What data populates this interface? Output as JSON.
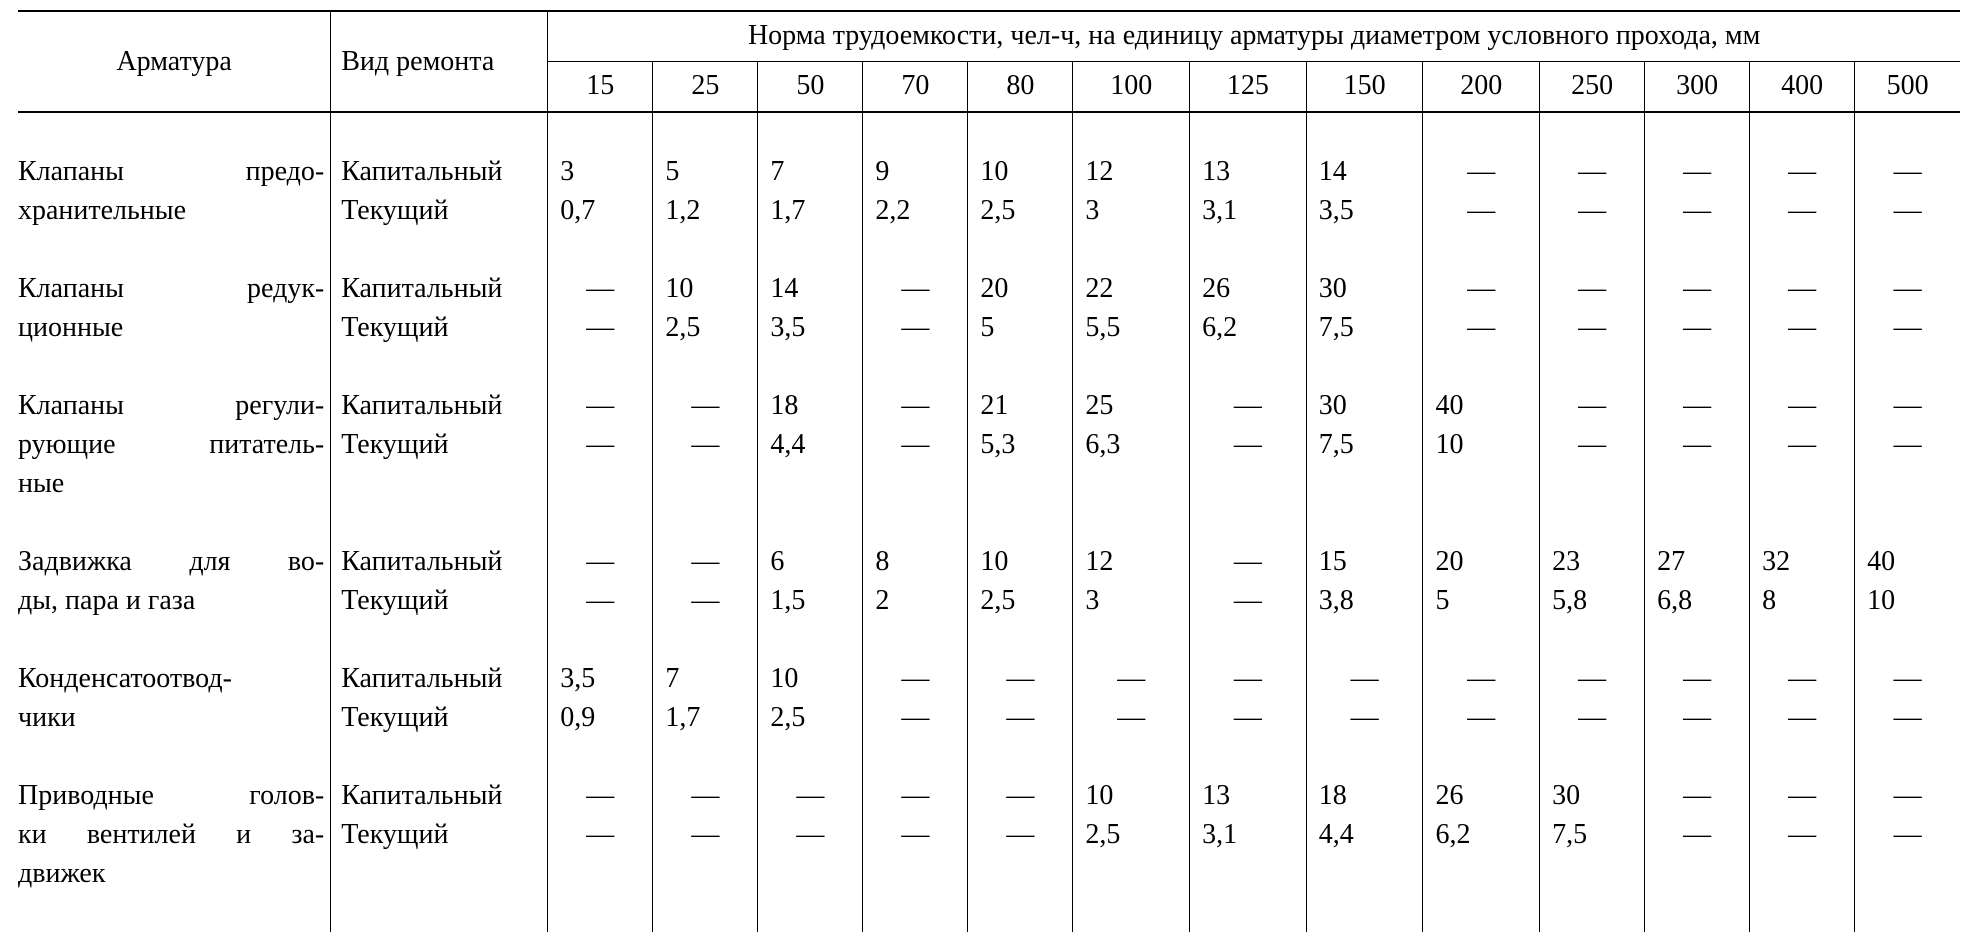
{
  "header": {
    "fitting": "Арматура",
    "repair_type": "Вид ремонта",
    "span": "Норма трудоемкости, чел-ч, на единицу арматуры диаметром условного прохода, мм",
    "diameters": [
      "15",
      "25",
      "50",
      "70",
      "80",
      "100",
      "125",
      "150",
      "200",
      "250",
      "300",
      "400",
      "500"
    ]
  },
  "dash": "—",
  "rows": [
    {
      "fitting_lines": [
        "Клапаны предо-",
        "хранительные"
      ],
      "filler_lines": 0,
      "repairs": [
        {
          "type": "Капитальный",
          "values": [
            "3",
            "5",
            "7",
            "9",
            "10",
            "12",
            "13",
            "14",
            "—",
            "—",
            "—",
            "—",
            "—"
          ]
        },
        {
          "type": "Текущий",
          "values": [
            "0,7",
            "1,2",
            "1,7",
            "2,2",
            "2,5",
            "3",
            "3,1",
            "3,5",
            "—",
            "—",
            "—",
            "—",
            "—"
          ]
        }
      ]
    },
    {
      "fitting_lines": [
        "Клапаны редук-",
        "ционные"
      ],
      "filler_lines": 0,
      "repairs": [
        {
          "type": "Капитальный",
          "values": [
            "—",
            "10",
            "14",
            "—",
            "20",
            "22",
            "26",
            "30",
            "—",
            "—",
            "—",
            "—",
            "—"
          ]
        },
        {
          "type": "Текущий",
          "values": [
            "—",
            "2,5",
            "3,5",
            "—",
            "5",
            "5,5",
            "6,2",
            "7,5",
            "—",
            "—",
            "—",
            "—",
            "—"
          ]
        }
      ]
    },
    {
      "fitting_lines": [
        "Клапаны регули-",
        "рующие питатель-",
        "ные"
      ],
      "filler_lines": 1,
      "repairs": [
        {
          "type": "Капитальный",
          "values": [
            "—",
            "—",
            "18",
            "—",
            "21",
            "25",
            "—",
            "30",
            "40",
            "—",
            "—",
            "—",
            "—"
          ]
        },
        {
          "type": "Текущий",
          "values": [
            "—",
            "—",
            "4,4",
            "—",
            "5,3",
            "6,3",
            "—",
            "7,5",
            "10",
            "—",
            "—",
            "—",
            "—"
          ]
        }
      ]
    },
    {
      "fitting_lines": [
        "Задвижка для во-",
        "ды, пара и газа"
      ],
      "filler_lines": 0,
      "repairs": [
        {
          "type": "Капитальный",
          "values": [
            "—",
            "—",
            "6",
            "8",
            "10",
            "12",
            "—",
            "15",
            "20",
            "23",
            "27",
            "32",
            "40"
          ]
        },
        {
          "type": "Текущий",
          "values": [
            "—",
            "—",
            "1,5",
            "2",
            "2,5",
            "3",
            "—",
            "3,8",
            "5",
            "5,8",
            "6,8",
            "8",
            "10"
          ]
        }
      ]
    },
    {
      "fitting_lines": [
        "Конденсатоотвод-",
        "чики"
      ],
      "filler_lines": 0,
      "repairs": [
        {
          "type": "Капитальный",
          "values": [
            "3,5",
            "7",
            "10",
            "—",
            "—",
            "—",
            "—",
            "—",
            "—",
            "—",
            "—",
            "—",
            "—"
          ]
        },
        {
          "type": "Текущий",
          "values": [
            "0,9",
            "1,7",
            "2,5",
            "—",
            "—",
            "—",
            "—",
            "—",
            "—",
            "—",
            "—",
            "—",
            "—"
          ]
        }
      ]
    },
    {
      "fitting_lines": [
        "Приводные голов-",
        "ки вентилей и за-",
        "движек"
      ],
      "filler_lines": 1,
      "repairs": [
        {
          "type": "Капитальный",
          "values": [
            "—",
            "—",
            "—",
            "—",
            "—",
            "10",
            "13",
            "18",
            "26",
            "30",
            "—",
            "—",
            "—"
          ]
        },
        {
          "type": "Текущий",
          "values": [
            "—",
            "—",
            "—",
            "—",
            "—",
            "2,5",
            "3,1",
            "4,4",
            "6,2",
            "7,5",
            "—",
            "—",
            "—"
          ]
        }
      ]
    }
  ]
}
